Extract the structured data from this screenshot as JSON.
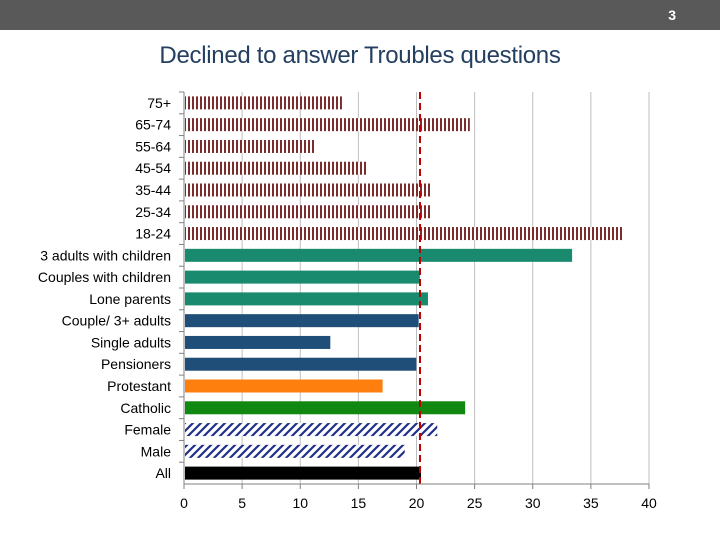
{
  "slide": {
    "page_number": "3",
    "title": "Declined to answer Troubles questions"
  },
  "chart_data": {
    "type": "bar",
    "orientation": "horizontal",
    "title": "Declined to answer Troubles questions",
    "xlabel": "",
    "ylabel": "",
    "xlim": [
      0,
      40
    ],
    "x_ticks": [
      0,
      5,
      10,
      15,
      20,
      25,
      30,
      35,
      40
    ],
    "grid": true,
    "legend": "none",
    "reference_line": {
      "value": 20.3,
      "color": "#c00000",
      "style": "dashed"
    },
    "categories": [
      "75+",
      "65-74",
      "55-64",
      "45-54",
      "35-44",
      "25-34",
      "18-24",
      "3 adults with children",
      "Couples with children",
      "Lone parents",
      "Couple/ 3+ adults",
      "Single adults",
      "Pensioners",
      "Protestant",
      "Catholic",
      "Female",
      "Male",
      "All"
    ],
    "values": [
      13.5,
      24.5,
      11.2,
      15.6,
      21.2,
      21.2,
      37.7,
      33.3,
      20.2,
      20.9,
      20.1,
      12.5,
      19.9,
      17.0,
      24.1,
      21.7,
      18.9,
      20.3
    ],
    "bar_styles": [
      "vstripe-maroon",
      "vstripe-maroon",
      "vstripe-maroon",
      "vstripe-maroon",
      "vstripe-maroon",
      "vstripe-maroon",
      "vstripe-maroon",
      "teal",
      "teal",
      "teal",
      "navy",
      "navy",
      "navy",
      "orange",
      "green",
      "diag-navy",
      "diag-navy",
      "black"
    ],
    "colors": {
      "maroon": "#7b2c2c",
      "teal": "#1a8a6e",
      "navy": "#1f4e79",
      "orange": "#ff7f0e",
      "green": "#118811",
      "diag_navy": "#1f2f8a",
      "black": "#000000",
      "grid": "#bfbfbf"
    }
  }
}
